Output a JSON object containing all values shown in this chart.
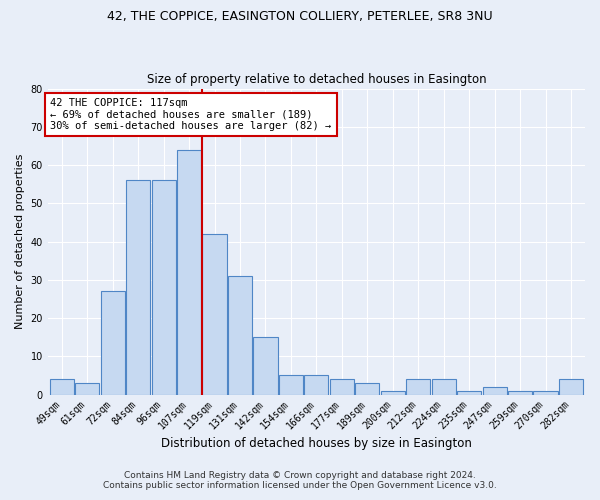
{
  "title": "42, THE COPPICE, EASINGTON COLLIERY, PETERLEE, SR8 3NU",
  "subtitle": "Size of property relative to detached houses in Easington",
  "xlabel": "Distribution of detached houses by size in Easington",
  "ylabel": "Number of detached properties",
  "categories": [
    "49sqm",
    "61sqm",
    "72sqm",
    "84sqm",
    "96sqm",
    "107sqm",
    "119sqm",
    "131sqm",
    "142sqm",
    "154sqm",
    "166sqm",
    "177sqm",
    "189sqm",
    "200sqm",
    "212sqm",
    "224sqm",
    "235sqm",
    "247sqm",
    "259sqm",
    "270sqm",
    "282sqm"
  ],
  "values": [
    4,
    3,
    27,
    56,
    56,
    64,
    42,
    31,
    15,
    5,
    5,
    4,
    3,
    1,
    4,
    4,
    1,
    2,
    1,
    1,
    4
  ],
  "bar_color": "#c6d9f1",
  "bar_edge_color": "#4f86c6",
  "vline_color": "#cc0000",
  "annotation_text": "42 THE COPPICE: 117sqm\n← 69% of detached houses are smaller (189)\n30% of semi-detached houses are larger (82) →",
  "annotation_box_color": "#cc0000",
  "ylim": [
    0,
    80
  ],
  "yticks": [
    0,
    10,
    20,
    30,
    40,
    50,
    60,
    70,
    80
  ],
  "footnote1": "Contains HM Land Registry data © Crown copyright and database right 2024.",
  "footnote2": "Contains public sector information licensed under the Open Government Licence v3.0.",
  "background_color": "#e8eef8",
  "grid_color": "#ffffff",
  "title_fontsize": 9,
  "subtitle_fontsize": 8.5,
  "xlabel_fontsize": 8.5,
  "ylabel_fontsize": 8,
  "tick_fontsize": 7,
  "annotation_fontsize": 7.5,
  "footnote_fontsize": 6.5
}
